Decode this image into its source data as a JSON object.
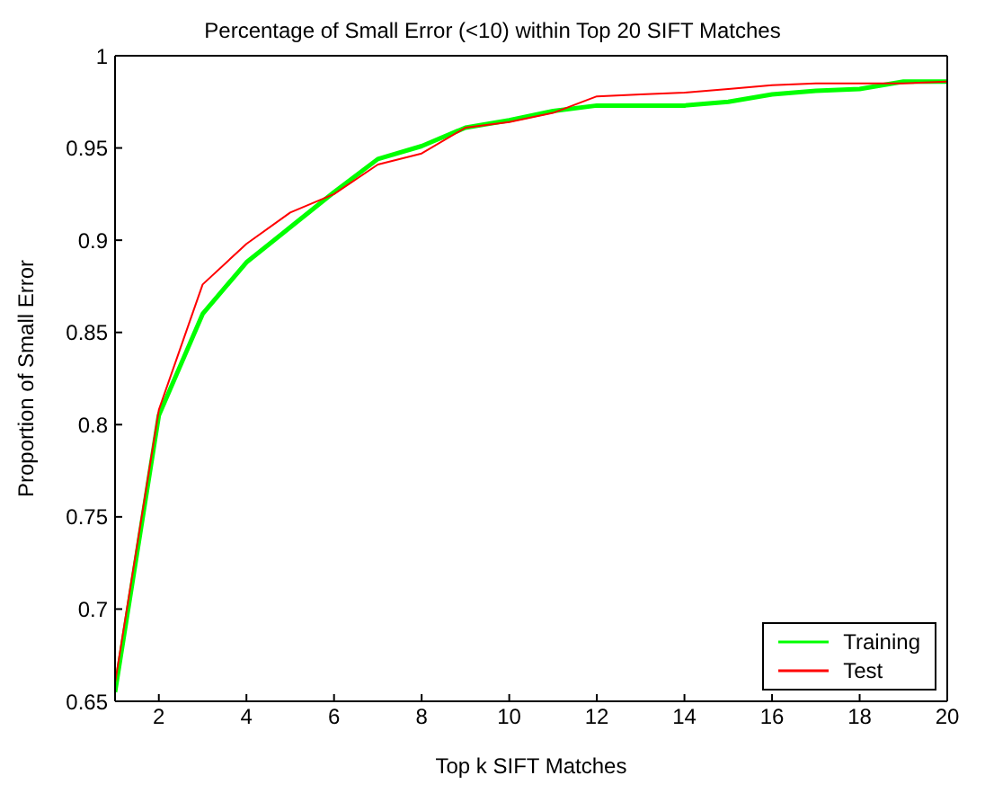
{
  "chart_data": {
    "type": "line",
    "title": "Percentage of Small Error (<10) within Top 20 SIFT Matches",
    "xlabel": "Top k SIFT Matches",
    "ylabel": "Proportion of Small Error",
    "x": [
      1,
      2,
      3,
      4,
      5,
      6,
      7,
      8,
      9,
      10,
      11,
      12,
      13,
      14,
      15,
      16,
      17,
      18,
      19,
      20
    ],
    "series": [
      {
        "name": "Training",
        "color": "#00ff00",
        "values": [
          0.655,
          0.805,
          0.86,
          0.888,
          0.907,
          0.926,
          0.944,
          0.951,
          0.961,
          0.965,
          0.97,
          0.973,
          0.973,
          0.973,
          0.975,
          0.979,
          0.981,
          0.982,
          0.986,
          0.986
        ]
      },
      {
        "name": "Test",
        "color": "#ff0000",
        "values": [
          0.66,
          0.808,
          0.876,
          0.898,
          0.915,
          0.925,
          0.941,
          0.947,
          0.961,
          0.964,
          0.969,
          0.978,
          0.979,
          0.98,
          0.982,
          0.984,
          0.985,
          0.985,
          0.985,
          0.986
        ]
      }
    ],
    "xlim": [
      1,
      20
    ],
    "xticks": [
      2,
      4,
      6,
      8,
      10,
      12,
      14,
      16,
      18,
      20
    ],
    "ylim": [
      0.65,
      1
    ],
    "yticks": [
      0.65,
      0.7,
      0.75,
      0.8,
      0.85,
      0.9,
      0.95,
      1
    ],
    "grid": false,
    "legend": "bottom right",
    "marker": "none",
    "line_style": "solid"
  }
}
